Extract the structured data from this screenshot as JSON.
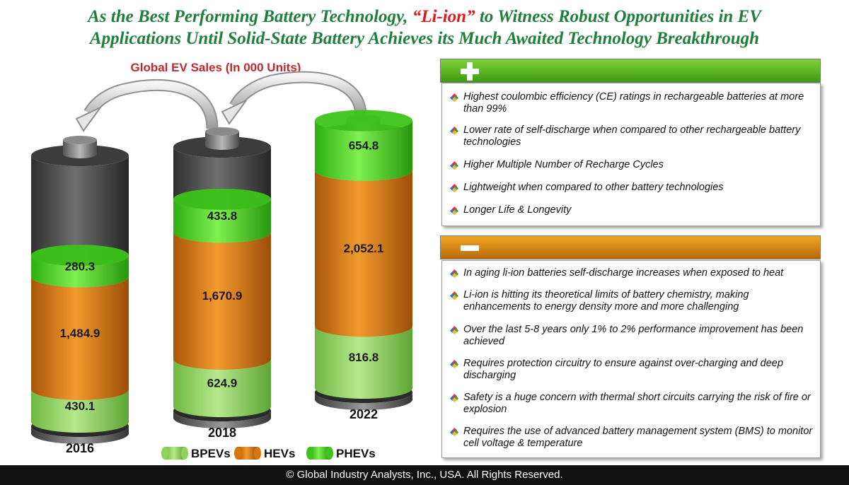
{
  "header": {
    "title_line1_a": "As the Best Performing Battery Technology, ",
    "title_line1_hl": "“Li-ion”",
    "title_line1_b": " to Witness Robust Opportunities in EV",
    "title_line2": "Applications Until Solid-State Battery Achieves its Much Awaited Technology Breakthrough"
  },
  "chart_data": {
    "type": "bar",
    "stacked": true,
    "title": "Global EV Sales (In 000 Units)",
    "categories": [
      "2016",
      "2018",
      "2022"
    ],
    "series": [
      {
        "name": "BPEVs",
        "values": [
          430.1,
          624.9,
          816.8
        ],
        "labels": [
          "430.1",
          "624.9",
          "816.8"
        ],
        "color": "#8fd35a"
      },
      {
        "name": "HEVs",
        "values": [
          1484.9,
          1670.9,
          2052.1
        ],
        "labels": [
          "1,484.9",
          "1,670.9",
          "2,052.1"
        ],
        "color": "#d9770f"
      },
      {
        "name": "PHEVs",
        "values": [
          280.3,
          433.8,
          654.8
        ],
        "labels": [
          "280.3",
          "433.8",
          "654.8"
        ],
        "color": "#3cc41a"
      }
    ]
  },
  "advantages": {
    "items": [
      "Highest coulombic efficiency (CE) ratings in rechargeable batteries at more than 99%",
      "Lower rate of self-discharge when compared to other rechargeable battery technologies",
      "Higher Multiple Number of Recharge Cycles",
      "Lightweight when compared to other battery technologies",
      "Longer Life & Longevity"
    ]
  },
  "disadvantages": {
    "items": [
      "In aging li-ion batteries self-discharge increases when exposed to heat",
      "Li-ion is hitting its theoretical limits of battery chemistry, making enhancements to energy density more and more challenging",
      "Over the last 5-8 years only 1% to 2% performance improvement has been achieved",
      "Requires protection circuitry to ensure against over-charging and deep discharging",
      "Safety is a huge concern with thermal short circuits carrying the risk of fire or explosion",
      "Requires the use of advanced battery management system (BMS) to monitor cell voltage & temperature"
    ]
  },
  "footer": {
    "copyright": "© Global Industry Analysts, Inc., USA. All Rights Reserved."
  }
}
